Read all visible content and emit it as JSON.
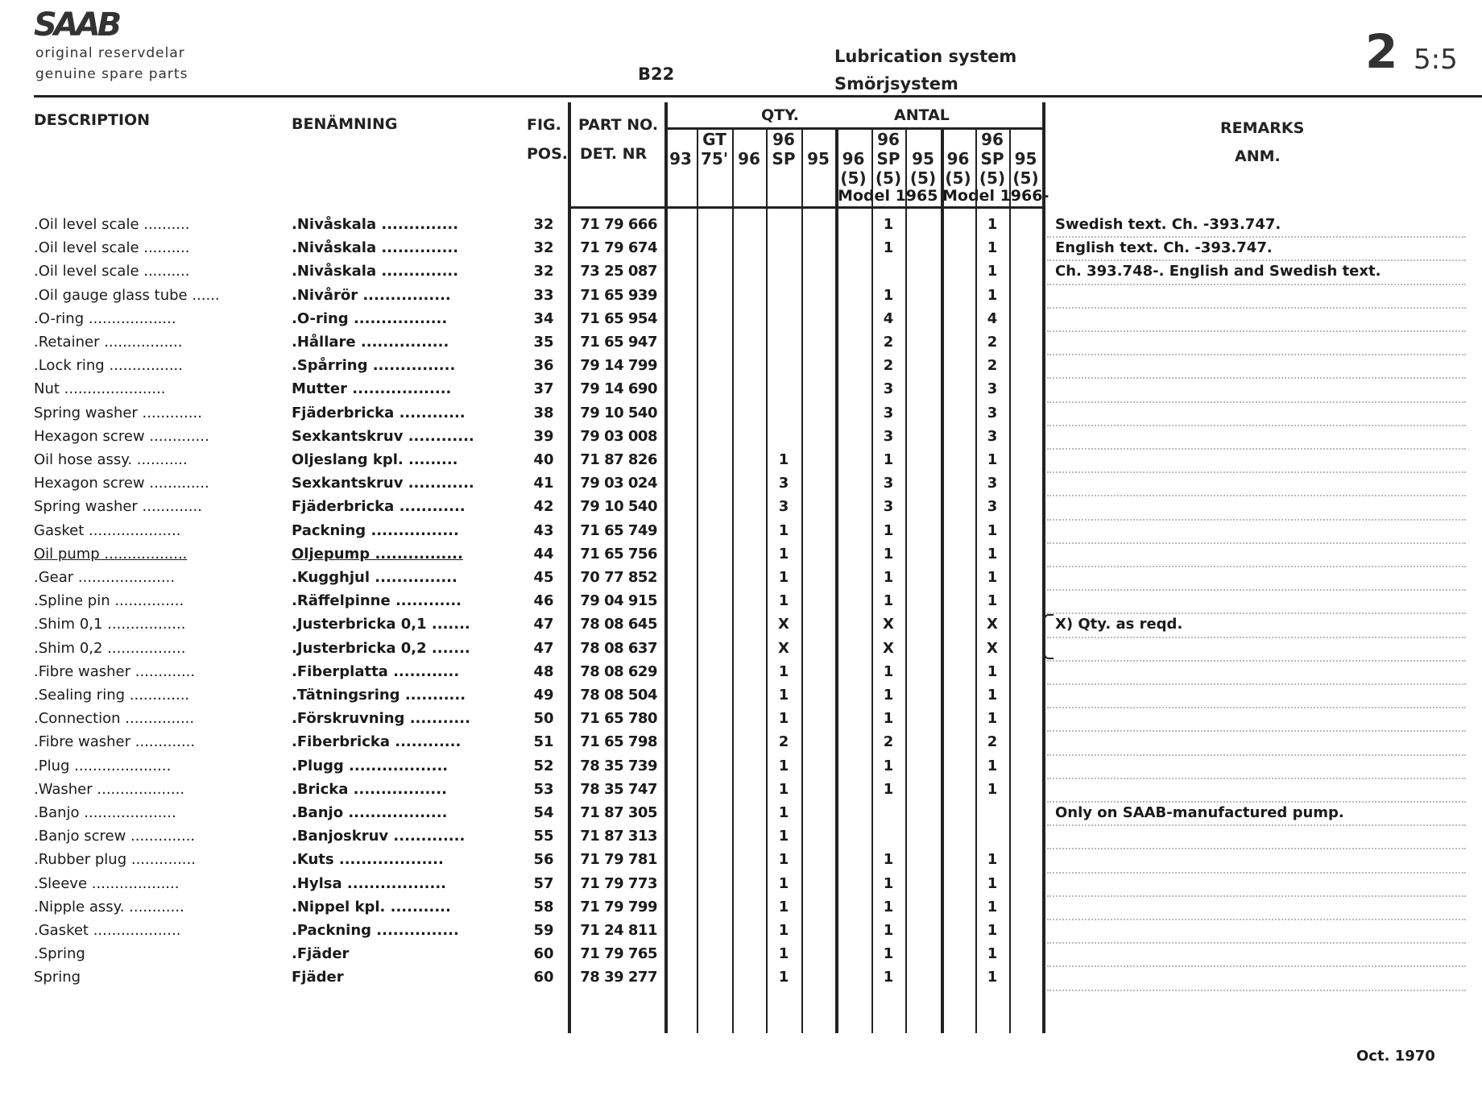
{
  "header": {
    "logo": "SAAB",
    "subtitle_1": "original reservdelar",
    "subtitle_2": "genuine spare parts",
    "engine": "B22",
    "title_en": "Lubrication system",
    "title_sv": "Smörjsystem",
    "page_group": "2",
    "page_sub": "5:5"
  },
  "columns": {
    "description": "DESCRIPTION",
    "benamning": "BENÄMNING",
    "fig": "FIG.",
    "pos": "POS.",
    "part_no": "PART NO.",
    "det_nr": "DET. NR",
    "qty": "QTY.",
    "antal": "ANTAL",
    "remarks": "REMARKS",
    "anm": "ANM.",
    "qty_cols": [
      {
        "top": "",
        "mid": "93",
        "bot": ""
      },
      {
        "top": "GT",
        "mid": "75'",
        "bot": ""
      },
      {
        "top": "",
        "mid": "96",
        "bot": ""
      },
      {
        "top": "96",
        "mid": "SP",
        "bot": ""
      },
      {
        "top": "",
        "mid": "95",
        "bot": ""
      },
      {
        "top": "",
        "mid": "96",
        "bot": "(5)"
      },
      {
        "top": "96",
        "mid": "SP",
        "bot": "(5)"
      },
      {
        "top": "",
        "mid": "95",
        "bot": "(5)"
      },
      {
        "top": "",
        "mid": "96",
        "bot": "(5)"
      },
      {
        "top": "96",
        "mid": "SP",
        "bot": "(5)"
      },
      {
        "top": "",
        "mid": "95",
        "bot": "(5)"
      }
    ],
    "model_1965": "Model 1965",
    "model_1966": "Model 1966-"
  },
  "rows": [
    {
      "desc": ".Oil level scale ..........",
      "ben": ".Nivåskala ..............",
      "pos": "32",
      "part": "71 79 666",
      "qty": [
        "",
        "",
        "",
        "",
        "",
        "",
        "1",
        "",
        "",
        "1",
        ""
      ],
      "remark": "Swedish text.  Ch. -393.747."
    },
    {
      "desc": ".Oil level scale ..........",
      "ben": ".Nivåskala ..............",
      "pos": "32",
      "part": "71 79 674",
      "qty": [
        "",
        "",
        "",
        "",
        "",
        "",
        "1",
        "",
        "",
        "1",
        ""
      ],
      "remark": "English text.  Ch. -393.747."
    },
    {
      "desc": ".Oil level scale ..........",
      "ben": ".Nivåskala ..............",
      "pos": "32",
      "part": "73 25 087",
      "qty": [
        "",
        "",
        "",
        "",
        "",
        "",
        "",
        "",
        "",
        "1",
        ""
      ],
      "remark": "Ch. 393.748-.  English and Swedish text."
    },
    {
      "desc": ".Oil gauge glass tube ......",
      "ben": ".Nivårör ................",
      "pos": "33",
      "part": "71 65 939",
      "qty": [
        "",
        "",
        "",
        "",
        "",
        "",
        "1",
        "",
        "",
        "1",
        ""
      ],
      "remark": ""
    },
    {
      "desc": ".O-ring ...................",
      "ben": ".O-ring .................",
      "pos": "34",
      "part": "71 65 954",
      "qty": [
        "",
        "",
        "",
        "",
        "",
        "",
        "4",
        "",
        "",
        "4",
        ""
      ],
      "remark": ""
    },
    {
      "desc": ".Retainer .................",
      "ben": ".Hållare ................",
      "pos": "35",
      "part": "71 65 947",
      "qty": [
        "",
        "",
        "",
        "",
        "",
        "",
        "2",
        "",
        "",
        "2",
        ""
      ],
      "remark": ""
    },
    {
      "desc": ".Lock ring ................",
      "ben": ".Spårring ...............",
      "pos": "36",
      "part": "79 14 799",
      "qty": [
        "",
        "",
        "",
        "",
        "",
        "",
        "2",
        "",
        "",
        "2",
        ""
      ],
      "remark": ""
    },
    {
      "desc": "Nut ......................",
      "ben": "Mutter ..................",
      "pos": "37",
      "part": "79 14 690",
      "qty": [
        "",
        "",
        "",
        "",
        "",
        "",
        "3",
        "",
        "",
        "3",
        ""
      ],
      "remark": ""
    },
    {
      "desc": "Spring washer .............",
      "ben": "Fjäderbricka ............",
      "pos": "38",
      "part": "79 10 540",
      "qty": [
        "",
        "",
        "",
        "",
        "",
        "",
        "3",
        "",
        "",
        "3",
        ""
      ],
      "remark": ""
    },
    {
      "desc": "Hexagon screw .............",
      "ben": "Sexkantskruv ............",
      "pos": "39",
      "part": "79 03 008",
      "qty": [
        "",
        "",
        "",
        "",
        "",
        "",
        "3",
        "",
        "",
        "3",
        ""
      ],
      "remark": ""
    },
    {
      "desc": "Oil hose assy.  ...........",
      "ben": "Oljeslang kpl.  .........",
      "pos": "40",
      "part": "71 87 826",
      "qty": [
        "",
        "",
        "",
        "1",
        "",
        "",
        "1",
        "",
        "",
        "1",
        ""
      ],
      "remark": ""
    },
    {
      "desc": "Hexagon screw .............",
      "ben": "Sexkantskruv ............",
      "pos": "41",
      "part": "79 03 024",
      "qty": [
        "",
        "",
        "",
        "3",
        "",
        "",
        "3",
        "",
        "",
        "3",
        ""
      ],
      "remark": ""
    },
    {
      "desc": "Spring washer .............",
      "ben": "Fjäderbricka ............",
      "pos": "42",
      "part": "79 10 540",
      "qty": [
        "",
        "",
        "",
        "3",
        "",
        "",
        "3",
        "",
        "",
        "3",
        ""
      ],
      "remark": ""
    },
    {
      "desc": "Gasket ....................",
      "ben": "Packning ................",
      "pos": "43",
      "part": "71 65 749",
      "qty": [
        "",
        "",
        "",
        "1",
        "",
        "",
        "1",
        "",
        "",
        "1",
        ""
      ],
      "remark": ""
    },
    {
      "desc": "Oil pump ..................",
      "ben": "Oljepump ................",
      "pos": "44",
      "part": "71 65 756",
      "qty": [
        "",
        "",
        "",
        "1",
        "",
        "",
        "1",
        "",
        "",
        "1",
        ""
      ],
      "remark": "",
      "underline": true
    },
    {
      "desc": ".Gear .....................",
      "ben": ".Kugghjul ...............",
      "pos": "45",
      "part": "70 77 852",
      "qty": [
        "",
        "",
        "",
        "1",
        "",
        "",
        "1",
        "",
        "",
        "1",
        ""
      ],
      "remark": ""
    },
    {
      "desc": ".Spline pin ...............",
      "ben": ".Räffelpinne ............",
      "pos": "46",
      "part": "79 04 915",
      "qty": [
        "",
        "",
        "",
        "1",
        "",
        "",
        "1",
        "",
        "",
        "1",
        ""
      ],
      "remark": ""
    },
    {
      "desc": ".Shim 0,1 .................",
      "ben": ".Justerbricka 0,1 .......",
      "pos": "47",
      "part": "78 08 645",
      "qty": [
        "",
        "",
        "",
        "X",
        "",
        "",
        "X",
        "",
        "",
        "X",
        ""
      ],
      "remark": "X) Qty. as reqd."
    },
    {
      "desc": ".Shim 0,2 .................",
      "ben": ".Justerbricka 0,2 .......",
      "pos": "47",
      "part": "78 08 637",
      "qty": [
        "",
        "",
        "",
        "X",
        "",
        "",
        "X",
        "",
        "",
        "X",
        ""
      ],
      "remark": ""
    },
    {
      "desc": ".Fibre washer .............",
      "ben": ".Fiberplatta ............",
      "pos": "48",
      "part": "78 08 629",
      "qty": [
        "",
        "",
        "",
        "1",
        "",
        "",
        "1",
        "",
        "",
        "1",
        ""
      ],
      "remark": ""
    },
    {
      "desc": ".Sealing ring .............",
      "ben": ".Tätningsring ...........",
      "pos": "49",
      "part": "78 08 504",
      "qty": [
        "",
        "",
        "",
        "1",
        "",
        "",
        "1",
        "",
        "",
        "1",
        ""
      ],
      "remark": ""
    },
    {
      "desc": ".Connection ...............",
      "ben": ".Förskruvning ...........",
      "pos": "50",
      "part": "71 65 780",
      "qty": [
        "",
        "",
        "",
        "1",
        "",
        "",
        "1",
        "",
        "",
        "1",
        ""
      ],
      "remark": ""
    },
    {
      "desc": ".Fibre washer .............",
      "ben": ".Fiberbricka ............",
      "pos": "51",
      "part": "71 65 798",
      "qty": [
        "",
        "",
        "",
        "2",
        "",
        "",
        "2",
        "",
        "",
        "2",
        ""
      ],
      "remark": ""
    },
    {
      "desc": ".Plug .....................",
      "ben": ".Plugg ..................",
      "pos": "52",
      "part": "78 35 739",
      "qty": [
        "",
        "",
        "",
        "1",
        "",
        "",
        "1",
        "",
        "",
        "1",
        ""
      ],
      "remark": ""
    },
    {
      "desc": ".Washer ...................",
      "ben": ".Bricka .................",
      "pos": "53",
      "part": "78 35 747",
      "qty": [
        "",
        "",
        "",
        "1",
        "",
        "",
        "1",
        "",
        "",
        "1",
        ""
      ],
      "remark": ""
    },
    {
      "desc": ".Banjo ....................",
      "ben": ".Banjo ..................",
      "pos": "54",
      "part": "71 87 305",
      "qty": [
        "",
        "",
        "",
        "1",
        "",
        "",
        "",
        "",
        "",
        "",
        ""
      ],
      "remark": "Only on SAAB-manufactured pump."
    },
    {
      "desc": ".Banjo screw ..............",
      "ben": ".Banjoskruv .............",
      "pos": "55",
      "part": "71 87 313",
      "qty": [
        "",
        "",
        "",
        "1",
        "",
        "",
        "",
        "",
        "",
        "",
        ""
      ],
      "remark": ""
    },
    {
      "desc": ".Rubber plug ..............",
      "ben": ".Kuts ...................",
      "pos": "56",
      "part": "71 79 781",
      "qty": [
        "",
        "",
        "",
        "1",
        "",
        "",
        "1",
        "",
        "",
        "1",
        ""
      ],
      "remark": ""
    },
    {
      "desc": ".Sleeve ...................",
      "ben": ".Hylsa ..................",
      "pos": "57",
      "part": "71 79 773",
      "qty": [
        "",
        "",
        "",
        "1",
        "",
        "",
        "1",
        "",
        "",
        "1",
        ""
      ],
      "remark": ""
    },
    {
      "desc": ".Nipple assy.  ............",
      "ben": ".Nippel kpl.  ...........",
      "pos": "58",
      "part": "71 79 799",
      "qty": [
        "",
        "",
        "",
        "1",
        "",
        "",
        "1",
        "",
        "",
        "1",
        ""
      ],
      "remark": ""
    },
    {
      "desc": ".Gasket ...................",
      "ben": ".Packning ...............",
      "pos": "59",
      "part": "71 24 811",
      "qty": [
        "",
        "",
        "",
        "1",
        "",
        "",
        "1",
        "",
        "",
        "1",
        ""
      ],
      "remark": ""
    },
    {
      "desc": ".Spring",
      "ben": ".Fjäder",
      "pos": "60",
      "part": "71 79 765",
      "qty": [
        "",
        "",
        "",
        "1",
        "",
        "",
        "1",
        "",
        "",
        "1",
        ""
      ],
      "remark": ""
    },
    {
      "desc": "Spring",
      "ben": "Fjäder",
      "pos": "60",
      "part": "78 39 277",
      "qty": [
        "",
        "",
        "",
        "1",
        "",
        "",
        "1",
        "",
        "",
        "1",
        ""
      ],
      "remark": ""
    }
  ],
  "footer": {
    "date": "Oct. 1970"
  }
}
